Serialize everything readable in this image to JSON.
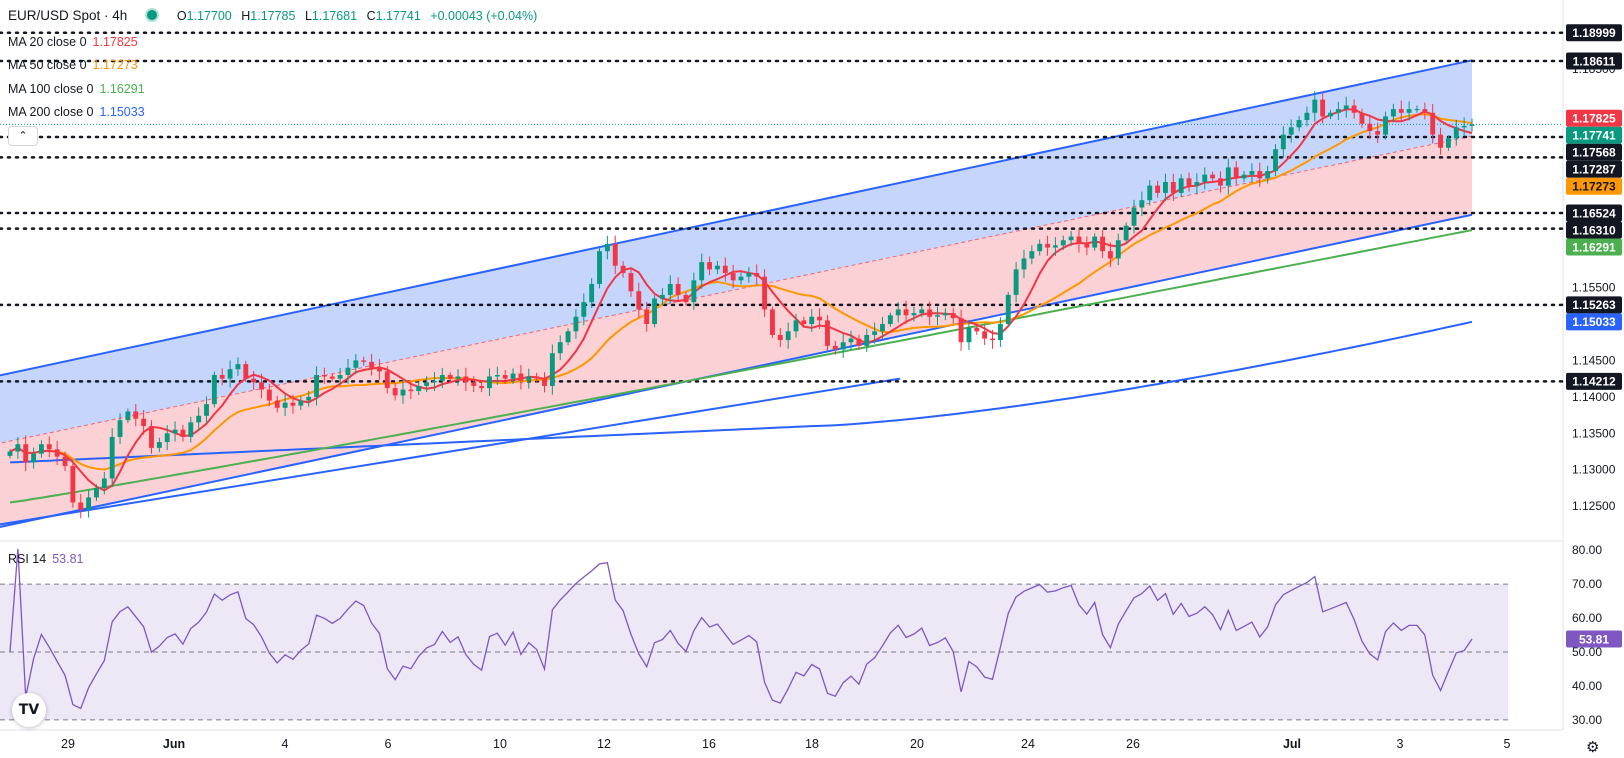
{
  "header": {
    "symbol": "EUR/USD Spot · 4h",
    "open_label": "O",
    "open": "1.17700",
    "high_label": "H",
    "high": "1.17785",
    "low_label": "L",
    "low": "1.17681",
    "close_label": "C",
    "close": "1.17741",
    "change": "+0.00043 (+0.04%)"
  },
  "indicators": [
    {
      "label": "MA 20 close 0",
      "value": "1.17825",
      "color": "#f23645"
    },
    {
      "label": "MA 50 close 0",
      "value": "1.17273",
      "color": "#ff9800"
    },
    {
      "label": "MA 100 close 0",
      "value": "1.16291",
      "color": "#4caf50"
    },
    {
      "label": "MA 200 close 0",
      "value": "1.15033",
      "color": "#2962ff"
    }
  ],
  "rsi": {
    "label": "RSI 14",
    "value": "53.81",
    "color": "#7e57c2"
  },
  "icons": {
    "collapse": "chevron-up-icon",
    "logo": "tradingview-logo-icon",
    "settings": "gear-icon"
  },
  "colors": {
    "up": "#089981",
    "down": "#f23645",
    "channel_upper_fill": "#c3d3fb",
    "channel_lower_fill": "#fbcfd3",
    "rsi_band": "#ede7f6"
  },
  "chart_data": {
    "type": "candlestick",
    "title": "EUR/USD Spot · 4h",
    "x_tick_labels": [
      "29",
      "Jun",
      "4",
      "6",
      "10",
      "12",
      "16",
      "18",
      "20",
      "24",
      "26",
      "Jul",
      "3",
      "5"
    ],
    "price_ticks": [
      "1.18500",
      "1.15500",
      "1.14500",
      "1.14000",
      "1.13500",
      "1.13000",
      "1.12500"
    ],
    "ylim": [
      1.122,
      1.1905
    ],
    "current_price": "1.17741",
    "horizontal_levels": [
      "1.18999",
      "1.18611",
      "1.17568",
      "1.17287",
      "1.16524",
      "1.16310",
      "1.15263",
      "1.14212"
    ],
    "price_labels": [
      {
        "value": "1.18999",
        "style": "level"
      },
      {
        "value": "1.18611",
        "style": "level"
      },
      {
        "value": "1.17825",
        "style": "ma20"
      },
      {
        "value": "1.17741",
        "style": "last"
      },
      {
        "value": "1.17568",
        "style": "level"
      },
      {
        "value": "1.17287",
        "style": "level"
      },
      {
        "value": "1.17273",
        "style": "ma50"
      },
      {
        "value": "1.16524",
        "style": "level"
      },
      {
        "value": "1.16310",
        "style": "level"
      },
      {
        "value": "1.16291",
        "style": "ma100"
      },
      {
        "value": "1.15263",
        "style": "level"
      },
      {
        "value": "1.15033",
        "style": "ma200"
      },
      {
        "value": "1.14212",
        "style": "level"
      }
    ],
    "closes": [
      1.1325,
      1.1335,
      1.131,
      1.1322,
      1.1335,
      1.1328,
      1.1318,
      1.1305,
      1.1255,
      1.1245,
      1.1262,
      1.1275,
      1.1288,
      1.1345,
      1.1368,
      1.138,
      1.137,
      1.136,
      1.133,
      1.1338,
      1.135,
      1.1355,
      1.1345,
      1.1365,
      1.1374,
      1.139,
      1.143,
      1.1425,
      1.1438,
      1.1445,
      1.1425,
      1.142,
      1.141,
      1.1395,
      1.1385,
      1.1392,
      1.1388,
      1.1395,
      1.14,
      1.143,
      1.1428,
      1.1425,
      1.143,
      1.144,
      1.145,
      1.1448,
      1.144,
      1.1435,
      1.1412,
      1.1402,
      1.141,
      1.1408,
      1.1415,
      1.142,
      1.1422,
      1.143,
      1.1425,
      1.1428,
      1.142,
      1.1415,
      1.1412,
      1.1428,
      1.143,
      1.1425,
      1.1432,
      1.1422,
      1.1428,
      1.1425,
      1.1415,
      1.146,
      1.1475,
      1.149,
      1.151,
      1.153,
      1.1555,
      1.16,
      1.161,
      1.158,
      1.157,
      1.1545,
      1.152,
      1.15,
      1.1535,
      1.154,
      1.1555,
      1.154,
      1.153,
      1.156,
      1.1585,
      1.1575,
      1.158,
      1.157,
      1.156,
      1.1565,
      1.157,
      1.1565,
      1.152,
      1.1485,
      1.1478,
      1.149,
      1.1505,
      1.15,
      1.151,
      1.1505,
      1.147,
      1.1465,
      1.1475,
      1.148,
      1.147,
      1.1485,
      1.149,
      1.15,
      1.1512,
      1.152,
      1.1512,
      1.1515,
      1.152,
      1.151,
      1.1512,
      1.1515,
      1.1508,
      1.1475,
      1.1495,
      1.149,
      1.148,
      1.1478,
      1.15,
      1.154,
      1.1575,
      1.159,
      1.16,
      1.161,
      1.1605,
      1.1608,
      1.1615,
      1.162,
      1.161,
      1.1605,
      1.162,
      1.16,
      1.159,
      1.1615,
      1.1635,
      1.166,
      1.167,
      1.169,
      1.168,
      1.1695,
      1.168,
      1.17,
      1.169,
      1.1695,
      1.1705,
      1.17,
      1.169,
      1.1715,
      1.17,
      1.1705,
      1.171,
      1.17,
      1.171,
      1.174,
      1.176,
      1.177,
      1.178,
      1.179,
      1.1808,
      1.1785,
      1.179,
      1.1795,
      1.18,
      1.179,
      1.1775,
      1.1765,
      1.176,
      1.1785,
      1.1795,
      1.179,
      1.1795,
      1.1795,
      1.179,
      1.176,
      1.1742,
      1.1755,
      1.177,
      1.1772,
      1.1774
    ],
    "ma20": {
      "name": "MA 20 close 0",
      "last": "1.17825",
      "color": "#f23645"
    },
    "ma50": {
      "name": "MA 50 close 0",
      "last": "1.17273",
      "color": "#ff9800"
    },
    "ma100": {
      "name": "MA 100 close 0",
      "last": "1.16291",
      "color": "#4caf50"
    },
    "ma200": {
      "name": "MA 200 close 0",
      "last": "1.15033",
      "color": "#2962ff"
    },
    "channel": {
      "lower_start": 1.122,
      "mid_start": 1.1335,
      "upper_start": 1.1428,
      "lower_end": 1.165,
      "mid_end": 1.1758,
      "upper_end": 1.1862
    },
    "rsi": {
      "name": "RSI 14",
      "ticks": [
        "80.00",
        "70.00",
        "60.00",
        "50.00",
        "40.00",
        "30.00"
      ],
      "bands": [
        70,
        50,
        30
      ],
      "ylim": [
        27,
        83
      ],
      "current": "53.81"
    }
  }
}
